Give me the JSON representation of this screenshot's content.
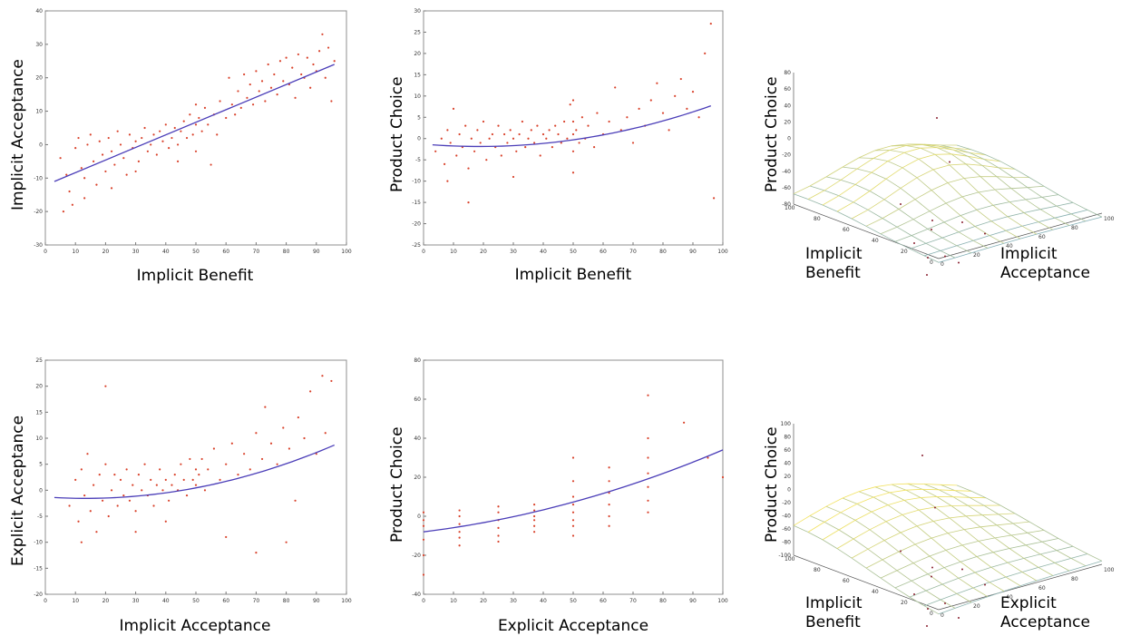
{
  "chart_data": [
    {
      "type": "scatter",
      "xlabel": "Implicit Benefit",
      "ylabel": "Implicit Acceptance",
      "xlim": [
        0,
        100
      ],
      "ylim": [
        -30,
        40
      ],
      "xticks": [
        0,
        10,
        20,
        30,
        40,
        50,
        60,
        70,
        80,
        90,
        100
      ],
      "yticks": [
        -30,
        -20,
        -10,
        0,
        10,
        20,
        30,
        40
      ],
      "fit": {
        "kind": "linear",
        "x": [
          3,
          96
        ],
        "y": [
          -11,
          24
        ]
      },
      "points": [
        [
          5,
          -4
        ],
        [
          7,
          -9
        ],
        [
          8,
          -14
        ],
        [
          10,
          -1
        ],
        [
          11,
          2
        ],
        [
          12,
          -7
        ],
        [
          13,
          -10
        ],
        [
          14,
          0
        ],
        [
          15,
          3
        ],
        [
          16,
          -5
        ],
        [
          17,
          -12
        ],
        [
          18,
          1
        ],
        [
          19,
          -3
        ],
        [
          20,
          -8
        ],
        [
          21,
          2
        ],
        [
          22,
          -2
        ],
        [
          23,
          -6
        ],
        [
          24,
          4
        ],
        [
          25,
          0
        ],
        [
          26,
          -4
        ],
        [
          27,
          -9
        ],
        [
          28,
          3
        ],
        [
          29,
          -1
        ],
        [
          30,
          1
        ],
        [
          31,
          -5
        ],
        [
          32,
          2
        ],
        [
          33,
          5
        ],
        [
          34,
          -2
        ],
        [
          35,
          0
        ],
        [
          36,
          3
        ],
        [
          37,
          -3
        ],
        [
          38,
          4
        ],
        [
          39,
          1
        ],
        [
          40,
          6
        ],
        [
          41,
          -1
        ],
        [
          42,
          2
        ],
        [
          43,
          5
        ],
        [
          44,
          0
        ],
        [
          45,
          4
        ],
        [
          46,
          7
        ],
        [
          47,
          2
        ],
        [
          48,
          9
        ],
        [
          49,
          3
        ],
        [
          50,
          6
        ],
        [
          50,
          12
        ],
        [
          50,
          -2
        ],
        [
          51,
          8
        ],
        [
          52,
          4
        ],
        [
          53,
          11
        ],
        [
          54,
          6
        ],
        [
          56,
          9
        ],
        [
          57,
          3
        ],
        [
          58,
          13
        ],
        [
          60,
          8
        ],
        [
          61,
          20
        ],
        [
          62,
          12
        ],
        [
          63,
          9
        ],
        [
          64,
          16
        ],
        [
          65,
          11
        ],
        [
          66,
          21
        ],
        [
          67,
          14
        ],
        [
          68,
          18
        ],
        [
          69,
          12
        ],
        [
          70,
          22
        ],
        [
          71,
          16
        ],
        [
          72,
          19
        ],
        [
          73,
          13
        ],
        [
          74,
          24
        ],
        [
          75,
          17
        ],
        [
          76,
          21
        ],
        [
          77,
          15
        ],
        [
          78,
          25
        ],
        [
          79,
          19
        ],
        [
          80,
          26
        ],
        [
          81,
          18
        ],
        [
          82,
          23
        ],
        [
          83,
          14
        ],
        [
          84,
          27
        ],
        [
          85,
          21
        ],
        [
          86,
          20
        ],
        [
          87,
          26
        ],
        [
          88,
          17
        ],
        [
          89,
          24
        ],
        [
          90,
          22
        ],
        [
          91,
          28
        ],
        [
          92,
          33
        ],
        [
          93,
          20
        ],
        [
          94,
          29
        ],
        [
          95,
          13
        ],
        [
          96,
          25
        ],
        [
          6,
          -20
        ],
        [
          9,
          -18
        ],
        [
          13,
          -16
        ],
        [
          30,
          -8
        ],
        [
          44,
          -5
        ],
        [
          55,
          -6
        ],
        [
          22,
          -13
        ]
      ]
    },
    {
      "type": "scatter",
      "xlabel": "Implicit Benefit",
      "ylabel": "Product Choice",
      "xlim": [
        0,
        100
      ],
      "ylim": [
        -25,
        30
      ],
      "xticks": [
        0,
        10,
        20,
        30,
        40,
        50,
        60,
        70,
        80,
        90,
        100
      ],
      "yticks": [
        -25,
        -20,
        -15,
        -10,
        -5,
        0,
        5,
        10,
        15,
        20,
        25,
        30
      ],
      "fit": {
        "kind": "quadratic",
        "x0": 3,
        "x1": 96,
        "a": 0.0016,
        "b": -0.06,
        "c": -1.3
      },
      "points": [
        [
          4,
          -3
        ],
        [
          6,
          0
        ],
        [
          7,
          -6
        ],
        [
          8,
          2
        ],
        [
          9,
          -1
        ],
        [
          10,
          7
        ],
        [
          11,
          -4
        ],
        [
          12,
          1
        ],
        [
          13,
          -2
        ],
        [
          14,
          3
        ],
        [
          15,
          -7
        ],
        [
          16,
          0
        ],
        [
          17,
          -3
        ],
        [
          18,
          2
        ],
        [
          19,
          -1
        ],
        [
          20,
          4
        ],
        [
          21,
          -5
        ],
        [
          22,
          0
        ],
        [
          23,
          1
        ],
        [
          24,
          -2
        ],
        [
          25,
          3
        ],
        [
          26,
          -4
        ],
        [
          27,
          1
        ],
        [
          28,
          -1
        ],
        [
          29,
          2
        ],
        [
          30,
          0
        ],
        [
          31,
          -3
        ],
        [
          32,
          1
        ],
        [
          33,
          4
        ],
        [
          34,
          -2
        ],
        [
          35,
          0
        ],
        [
          36,
          2
        ],
        [
          37,
          -1
        ],
        [
          38,
          3
        ],
        [
          39,
          -4
        ],
        [
          40,
          1
        ],
        [
          41,
          0
        ],
        [
          42,
          2
        ],
        [
          43,
          -2
        ],
        [
          44,
          3
        ],
        [
          45,
          1
        ],
        [
          46,
          -1
        ],
        [
          47,
          4
        ],
        [
          48,
          0
        ],
        [
          49,
          8
        ],
        [
          50,
          -8
        ],
        [
          50,
          4
        ],
        [
          50,
          1
        ],
        [
          50,
          -3
        ],
        [
          50,
          9
        ],
        [
          51,
          2
        ],
        [
          52,
          -1
        ],
        [
          53,
          5
        ],
        [
          54,
          0
        ],
        [
          55,
          3
        ],
        [
          57,
          -2
        ],
        [
          58,
          6
        ],
        [
          60,
          1
        ],
        [
          62,
          4
        ],
        [
          64,
          12
        ],
        [
          66,
          2
        ],
        [
          68,
          5
        ],
        [
          70,
          -1
        ],
        [
          72,
          7
        ],
        [
          74,
          3
        ],
        [
          76,
          9
        ],
        [
          78,
          13
        ],
        [
          80,
          6
        ],
        [
          82,
          2
        ],
        [
          84,
          10
        ],
        [
          86,
          14
        ],
        [
          88,
          7
        ],
        [
          90,
          11
        ],
        [
          92,
          5
        ],
        [
          94,
          20
        ],
        [
          96,
          27
        ],
        [
          97,
          -14
        ],
        [
          30,
          -9
        ],
        [
          15,
          -15
        ],
        [
          8,
          -10
        ]
      ]
    },
    {
      "type": "surface",
      "xlabel": "Implicit Acceptance",
      "ylabel": "Implicit Benefit",
      "zlabel": "Product Choice",
      "zlim": [
        -80,
        80
      ],
      "zticks": [
        -80,
        -60,
        -40,
        -20,
        0,
        20,
        40,
        60,
        80
      ],
      "xticks": [
        0,
        20,
        40,
        60,
        80,
        100
      ],
      "yticks": [
        0,
        20,
        40,
        60,
        80,
        100
      ]
    },
    {
      "type": "scatter",
      "xlabel": "Implicit Acceptance",
      "ylabel": "Explicit Acceptance",
      "xlim": [
        0,
        100
      ],
      "ylim": [
        -20,
        25
      ],
      "xticks": [
        0,
        10,
        20,
        30,
        40,
        50,
        60,
        70,
        80,
        90,
        100
      ],
      "yticks": [
        -20,
        -15,
        -10,
        -5,
        0,
        5,
        10,
        15,
        20,
        25
      ],
      "fit": {
        "kind": "quadratic",
        "x0": 3,
        "x1": 96,
        "a": 0.0015,
        "b": -0.04,
        "c": -1.3
      },
      "points": [
        [
          8,
          -3
        ],
        [
          10,
          2
        ],
        [
          11,
          -6
        ],
        [
          12,
          4
        ],
        [
          13,
          -1
        ],
        [
          14,
          7
        ],
        [
          15,
          -4
        ],
        [
          16,
          1
        ],
        [
          17,
          -8
        ],
        [
          18,
          3
        ],
        [
          19,
          -2
        ],
        [
          20,
          20
        ],
        [
          20,
          5
        ],
        [
          21,
          -5
        ],
        [
          22,
          0
        ],
        [
          23,
          3
        ],
        [
          24,
          -3
        ],
        [
          25,
          2
        ],
        [
          26,
          -1
        ],
        [
          27,
          4
        ],
        [
          28,
          -2
        ],
        [
          29,
          1
        ],
        [
          30,
          -4
        ],
        [
          31,
          3
        ],
        [
          32,
          0
        ],
        [
          33,
          5
        ],
        [
          34,
          -1
        ],
        [
          35,
          2
        ],
        [
          36,
          -3
        ],
        [
          37,
          1
        ],
        [
          38,
          4
        ],
        [
          39,
          0
        ],
        [
          40,
          2
        ],
        [
          41,
          -2
        ],
        [
          42,
          1
        ],
        [
          43,
          3
        ],
        [
          44,
          0
        ],
        [
          45,
          5
        ],
        [
          46,
          2
        ],
        [
          47,
          -1
        ],
        [
          48,
          6
        ],
        [
          49,
          2
        ],
        [
          50,
          1
        ],
        [
          50,
          4
        ],
        [
          51,
          3
        ],
        [
          52,
          6
        ],
        [
          53,
          0
        ],
        [
          54,
          4
        ],
        [
          56,
          8
        ],
        [
          58,
          2
        ],
        [
          60,
          5
        ],
        [
          62,
          9
        ],
        [
          64,
          3
        ],
        [
          66,
          7
        ],
        [
          68,
          4
        ],
        [
          70,
          11
        ],
        [
          72,
          6
        ],
        [
          73,
          16
        ],
        [
          75,
          9
        ],
        [
          77,
          5
        ],
        [
          79,
          12
        ],
        [
          81,
          8
        ],
        [
          83,
          -2
        ],
        [
          84,
          14
        ],
        [
          86,
          10
        ],
        [
          88,
          19
        ],
        [
          90,
          7
        ],
        [
          92,
          22
        ],
        [
          93,
          11
        ],
        [
          95,
          21
        ],
        [
          80,
          -10
        ],
        [
          70,
          -12
        ],
        [
          60,
          -9
        ],
        [
          40,
          -6
        ],
        [
          30,
          -8
        ],
        [
          12,
          -10
        ]
      ]
    },
    {
      "type": "scatter",
      "xlabel": "Explicit Acceptance",
      "ylabel": "Product Choice",
      "xlim": [
        0,
        100
      ],
      "ylim": [
        -40,
        80
      ],
      "xticks": [
        0,
        10,
        20,
        30,
        40,
        50,
        60,
        70,
        80,
        90,
        100
      ],
      "yticks": [
        -40,
        -20,
        0,
        20,
        40,
        60,
        80
      ],
      "fit": {
        "kind": "quadratic",
        "x0": 0,
        "x1": 100,
        "a": 0.0023,
        "b": 0.19,
        "c": -8
      },
      "points": [
        [
          0,
          -30
        ],
        [
          0,
          -20
        ],
        [
          0,
          -12
        ],
        [
          0,
          -5
        ],
        [
          0,
          -2
        ],
        [
          0,
          2
        ],
        [
          12,
          -15
        ],
        [
          12,
          -8
        ],
        [
          12,
          -4
        ],
        [
          12,
          0
        ],
        [
          12,
          3
        ],
        [
          12,
          -11
        ],
        [
          25,
          -10
        ],
        [
          25,
          -6
        ],
        [
          25,
          -2
        ],
        [
          25,
          2
        ],
        [
          25,
          5
        ],
        [
          25,
          -13
        ],
        [
          37,
          -5
        ],
        [
          37,
          -2
        ],
        [
          37,
          0
        ],
        [
          37,
          3
        ],
        [
          37,
          6
        ],
        [
          37,
          -8
        ],
        [
          50,
          -10
        ],
        [
          50,
          -2
        ],
        [
          50,
          2
        ],
        [
          50,
          6
        ],
        [
          50,
          10
        ],
        [
          50,
          18
        ],
        [
          50,
          30
        ],
        [
          50,
          -5
        ],
        [
          62,
          -5
        ],
        [
          62,
          0
        ],
        [
          62,
          6
        ],
        [
          62,
          12
        ],
        [
          62,
          18
        ],
        [
          62,
          25
        ],
        [
          75,
          2
        ],
        [
          75,
          8
        ],
        [
          75,
          15
        ],
        [
          75,
          22
        ],
        [
          75,
          30
        ],
        [
          75,
          40
        ],
        [
          75,
          62
        ],
        [
          87,
          48
        ],
        [
          95,
          30
        ],
        [
          100,
          20
        ]
      ]
    },
    {
      "type": "surface",
      "xlabel": "Explicit Acceptance",
      "ylabel": "Implicit Benefit",
      "zlabel": "Product Choice",
      "zlim": [
        -100,
        100
      ],
      "zticks": [
        -100,
        -80,
        -60,
        -40,
        -20,
        0,
        20,
        40,
        60,
        80,
        100
      ],
      "xticks": [
        0,
        20,
        40,
        60,
        80,
        100
      ],
      "yticks": [
        0,
        20,
        40,
        60,
        80,
        100
      ]
    }
  ]
}
